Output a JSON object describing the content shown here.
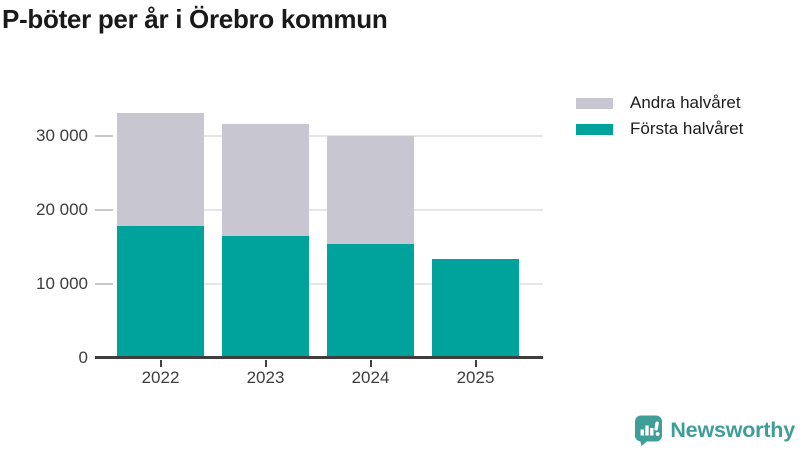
{
  "title": "P-böter per år i Örebro kommun",
  "legend": {
    "items": [
      {
        "label": "Andra halvåret",
        "color": "#c8c6d1"
      },
      {
        "label": "Första halvåret",
        "color": "#00a39b"
      }
    ]
  },
  "chart_data": {
    "type": "bar",
    "stacked": true,
    "title": "P-böter per år i Örebro kommun",
    "categories": [
      "2022",
      "2023",
      "2024",
      "2025"
    ],
    "series": [
      {
        "name": "Första halvåret",
        "color": "#00a39b",
        "values": [
          17800,
          16500,
          15400,
          13300
        ]
      },
      {
        "name": "Andra halvåret",
        "color": "#c8c6d1",
        "values": [
          15200,
          15000,
          14600,
          0
        ]
      }
    ],
    "stack_totals": [
      33000,
      31500,
      30000,
      13300
    ],
    "xlabel": "",
    "ylabel": "",
    "ylim": [
      0,
      34800
    ],
    "yticks": [
      0,
      10000,
      20000,
      30000
    ],
    "ytick_labels": [
      "0",
      "10 000",
      "20 000",
      "30 000"
    ],
    "grid": true,
    "legend_position": "top-right"
  },
  "branding": {
    "logo_label": "Newsworthy",
    "logo_icon": "newsworthy-speech-bubble-chart-icon",
    "brand_color": "#3f9e97"
  },
  "colors": {
    "first_half": "#00a39b",
    "second_half": "#c8c6d1",
    "axis": "#3e3e3e",
    "gridline": "#e6e6e8",
    "tick_dash": "#c9c9c9",
    "label_text": "#3d3d3d",
    "title_text": "#191919"
  }
}
